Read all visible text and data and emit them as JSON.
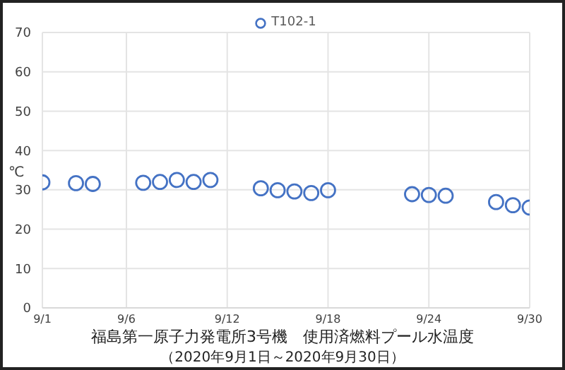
{
  "chart_data": {
    "type": "scatter",
    "title": "福島第一原子力発電所3号機　使用済燃料プール水温度",
    "subtitle": "（2020年9月1日～2020年9月30日）",
    "ylabel": "℃",
    "x": [
      "--09-01",
      "--09-03",
      "--09-04",
      "--09-07",
      "--09-08",
      "--09-09",
      "--09-10",
      "--09-11",
      "--09-14",
      "--09-15",
      "--09-16",
      "--09-17",
      "--09-18",
      "--09-23",
      "--09-24",
      "--09-25",
      "--09-28",
      "--09-29",
      "--09-30"
    ],
    "series": [
      {
        "name": "T102-1",
        "color": "#4472c4",
        "values": [
          31.9,
          31.7,
          31.5,
          31.8,
          32.0,
          32.5,
          32.0,
          32.5,
          30.4,
          29.9,
          29.6,
          29.2,
          29.9,
          28.9,
          28.7,
          28.5,
          26.9,
          26.1,
          25.5
        ]
      }
    ],
    "xlim": [
      "--09-01",
      "--09-30"
    ],
    "xticks": [
      {
        "value": "--09-01",
        "label": "9/1"
      },
      {
        "value": "--09-06",
        "label": "9/6"
      },
      {
        "value": "--09-12",
        "label": "9/12"
      },
      {
        "value": "--09-18",
        "label": "9/18"
      },
      {
        "value": "--09-24",
        "label": "9/24"
      },
      {
        "value": "--09-30",
        "label": "9/30"
      }
    ],
    "ylim": [
      0,
      70
    ],
    "yticks": [
      0,
      10,
      20,
      30,
      40,
      50,
      60,
      70
    ],
    "grid": true,
    "legend": "top",
    "marker": "circle"
  }
}
